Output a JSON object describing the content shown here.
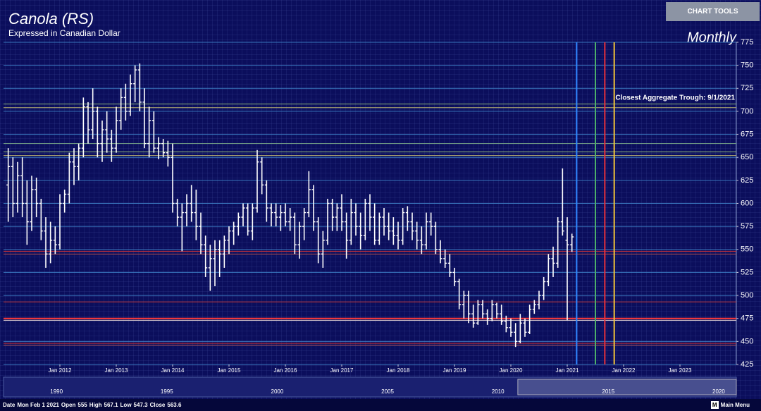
{
  "chart_data": {
    "type": "ohlc",
    "title": "Canola (RS)",
    "subtitle": "Expressed in Canadian Dollar",
    "period": "Monthly",
    "annotation": "Closest Aggregate Trough: 9/1/2021",
    "color": "#ffffff",
    "x": [
      "2011-02",
      "2011-03",
      "2011-04",
      "2011-05",
      "2011-06",
      "2011-07",
      "2011-08",
      "2011-09",
      "2011-10",
      "2011-11",
      "2011-12",
      "2012-01",
      "2012-02",
      "2012-03",
      "2012-04",
      "2012-05",
      "2012-06",
      "2012-07",
      "2012-08",
      "2012-09",
      "2012-10",
      "2012-11",
      "2012-12",
      "2013-01",
      "2013-02",
      "2013-03",
      "2013-04",
      "2013-05",
      "2013-06",
      "2013-07",
      "2013-08",
      "2013-09",
      "2013-10",
      "2013-11",
      "2013-12",
      "2014-01",
      "2014-02",
      "2014-03",
      "2014-04",
      "2014-05",
      "2014-06",
      "2014-07",
      "2014-08",
      "2014-09",
      "2014-10",
      "2014-11",
      "2014-12",
      "2015-01",
      "2015-02",
      "2015-03",
      "2015-04",
      "2015-05",
      "2015-06",
      "2015-07",
      "2015-08",
      "2015-09",
      "2015-10",
      "2015-11",
      "2015-12",
      "2016-01",
      "2016-02",
      "2016-03",
      "2016-04",
      "2016-05",
      "2016-06",
      "2016-07",
      "2016-08",
      "2016-09",
      "2016-10",
      "2016-11",
      "2016-12",
      "2017-01",
      "2017-02",
      "2017-03",
      "2017-04",
      "2017-05",
      "2017-06",
      "2017-07",
      "2017-08",
      "2017-09",
      "2017-10",
      "2017-11",
      "2017-12",
      "2018-01",
      "2018-02",
      "2018-03",
      "2018-04",
      "2018-05",
      "2018-06",
      "2018-07",
      "2018-08",
      "2018-09",
      "2018-10",
      "2018-11",
      "2018-12",
      "2019-01",
      "2019-02",
      "2019-03",
      "2019-04",
      "2019-05",
      "2019-06",
      "2019-07",
      "2019-08",
      "2019-09",
      "2019-10",
      "2019-11",
      "2019-12",
      "2020-01",
      "2020-02",
      "2020-03",
      "2020-04",
      "2020-05",
      "2020-06",
      "2020-07",
      "2020-08",
      "2020-09",
      "2020-10",
      "2020-11",
      "2020-12",
      "2021-01",
      "2021-02"
    ],
    "open": [
      620,
      640,
      600,
      630,
      600,
      580,
      615,
      600,
      570,
      545,
      560,
      555,
      600,
      610,
      645,
      640,
      660,
      705,
      680,
      700,
      665,
      680,
      670,
      660,
      690,
      715,
      700,
      730,
      745,
      710,
      665,
      690,
      660,
      665,
      655,
      650,
      600,
      585,
      590,
      600,
      590,
      575,
      555,
      530,
      540,
      550,
      545,
      560,
      570,
      575,
      585,
      595,
      570,
      595,
      645,
      620,
      595,
      590,
      585,
      590,
      580,
      585,
      555,
      575,
      590,
      615,
      580,
      545,
      560,
      600,
      585,
      595,
      580,
      560,
      590,
      575,
      565,
      600,
      585,
      560,
      585,
      575,
      570,
      565,
      560,
      590,
      580,
      570,
      560,
      555,
      580,
      575,
      550,
      540,
      535,
      525,
      515,
      490,
      500,
      480,
      470,
      490,
      480,
      475,
      490,
      480,
      472,
      465,
      460,
      450,
      470,
      460,
      485,
      490,
      500,
      515,
      540,
      535,
      580,
      560,
      555
    ],
    "high": [
      660,
      650,
      645,
      650,
      625,
      630,
      628,
      605,
      585,
      580,
      575,
      610,
      615,
      655,
      660,
      665,
      715,
      710,
      725,
      705,
      690,
      700,
      680,
      705,
      725,
      730,
      740,
      750,
      752,
      725,
      705,
      700,
      672,
      670,
      668,
      665,
      605,
      600,
      610,
      620,
      615,
      590,
      565,
      555,
      560,
      560,
      565,
      575,
      580,
      590,
      600,
      600,
      600,
      658,
      650,
      625,
      600,
      600,
      598,
      600,
      595,
      590,
      580,
      595,
      635,
      620,
      585,
      570,
      605,
      605,
      600,
      610,
      590,
      605,
      600,
      590,
      605,
      610,
      600,
      590,
      595,
      590,
      585,
      580,
      595,
      597,
      590,
      580,
      575,
      590,
      590,
      580,
      560,
      550,
      545,
      530,
      518,
      505,
      505,
      490,
      495,
      495,
      485,
      495,
      492,
      490,
      478,
      475,
      470,
      480,
      475,
      490,
      495,
      505,
      520,
      545,
      553,
      585,
      638,
      585,
      567.1
    ],
    "low": [
      580,
      585,
      590,
      585,
      555,
      570,
      585,
      560,
      530,
      535,
      545,
      550,
      590,
      600,
      620,
      625,
      650,
      665,
      670,
      650,
      645,
      655,
      645,
      655,
      680,
      690,
      695,
      710,
      700,
      660,
      650,
      655,
      648,
      650,
      640,
      590,
      575,
      548,
      575,
      580,
      560,
      545,
      520,
      505,
      510,
      520,
      530,
      545,
      555,
      565,
      575,
      565,
      560,
      590,
      610,
      580,
      575,
      575,
      570,
      575,
      570,
      545,
      540,
      560,
      585,
      570,
      535,
      530,
      555,
      570,
      570,
      570,
      540,
      555,
      565,
      550,
      560,
      570,
      555,
      555,
      565,
      560,
      555,
      550,
      555,
      570,
      560,
      550,
      545,
      550,
      565,
      545,
      535,
      530,
      520,
      510,
      485,
      475,
      470,
      465,
      468,
      475,
      468,
      472,
      475,
      468,
      460,
      455,
      444,
      448,
      455,
      458,
      480,
      485,
      495,
      510,
      520,
      530,
      565,
      473,
      547.3
    ],
    "close": [
      640,
      600,
      630,
      600,
      580,
      615,
      600,
      570,
      545,
      560,
      555,
      600,
      610,
      645,
      640,
      660,
      705,
      680,
      700,
      665,
      680,
      670,
      660,
      690,
      715,
      700,
      730,
      745,
      710,
      665,
      690,
      660,
      665,
      655,
      650,
      600,
      585,
      590,
      600,
      590,
      575,
      555,
      530,
      540,
      550,
      545,
      560,
      570,
      575,
      585,
      595,
      570,
      595,
      645,
      620,
      595,
      590,
      585,
      590,
      580,
      585,
      555,
      575,
      590,
      615,
      580,
      545,
      560,
      600,
      585,
      595,
      580,
      560,
      590,
      575,
      565,
      600,
      585,
      560,
      585,
      575,
      570,
      565,
      560,
      590,
      580,
      570,
      560,
      555,
      580,
      575,
      550,
      540,
      535,
      525,
      515,
      490,
      500,
      480,
      470,
      490,
      480,
      475,
      490,
      480,
      472,
      465,
      460,
      450,
      470,
      460,
      485,
      490,
      500,
      515,
      540,
      535,
      580,
      570,
      555,
      563.6
    ],
    "xlim": [
      "2011-01",
      "2024-01"
    ],
    "xticks": [
      {
        "value": "2012-01",
        "label": "Jan 2012"
      },
      {
        "value": "2013-01",
        "label": "Jan 2013"
      },
      {
        "value": "2014-01",
        "label": "Jan 2014"
      },
      {
        "value": "2015-01",
        "label": "Jan 2015"
      },
      {
        "value": "2016-01",
        "label": "Jan 2016"
      },
      {
        "value": "2017-01",
        "label": "Jan 2017"
      },
      {
        "value": "2018-01",
        "label": "Jan 2018"
      },
      {
        "value": "2019-01",
        "label": "Jan 2019"
      },
      {
        "value": "2020-01",
        "label": "Jan 2020"
      },
      {
        "value": "2021-01",
        "label": "Jan 2021"
      },
      {
        "value": "2022-01",
        "label": "Jan 2022"
      },
      {
        "value": "2023-01",
        "label": "Jan 2023"
      }
    ],
    "ylim": [
      425,
      775
    ],
    "yticks": [
      425,
      450,
      475,
      500,
      525,
      550,
      575,
      600,
      625,
      650,
      675,
      700,
      725,
      750,
      775
    ],
    "grid": true,
    "grid_color": "#3f82c8",
    "levels": [
      {
        "value": 708,
        "color": "#8fb878"
      },
      {
        "value": 704,
        "color": "#b8b070"
      },
      {
        "value": 665,
        "color": "#7aa888"
      },
      {
        "value": 656,
        "color": "#8fb878"
      },
      {
        "value": 652,
        "color": "#b8b070"
      },
      {
        "value": 548,
        "color": "#d83030"
      },
      {
        "value": 545,
        "color": "#b05050"
      },
      {
        "value": 493,
        "color": "#c03030"
      },
      {
        "value": 475,
        "color": "#ff3a3a",
        "width": 2
      },
      {
        "value": 473,
        "color": "#e0d0d0"
      },
      {
        "value": 448,
        "color": "#d83030"
      },
      {
        "value": 446,
        "color": "#b05050"
      }
    ],
    "vlines": [
      {
        "x": "2021-03",
        "color": "#2f86ff"
      },
      {
        "x": "2021-07",
        "color": "#4caf6a"
      },
      {
        "x": "2021-09",
        "color": "#e8313b"
      },
      {
        "x": "2021-11",
        "color": "#f2c53a"
      }
    ],
    "navigator": {
      "xlim": [
        1987.6,
        2020.8
      ],
      "xticks": [
        1990,
        1995,
        2000,
        2005,
        2010,
        2015,
        2020
      ],
      "window": [
        2010.9,
        2020.8
      ]
    }
  },
  "ui": {
    "chart_tools": "CHART TOOLS",
    "main_menu_icon": "M",
    "main_menu": "Main Menu",
    "footer": {
      "date_label": "Date",
      "date": "Mon Feb 1 2021",
      "open_label": "Open",
      "open": 555,
      "high_label": "High",
      "high": 567.1,
      "low_label": "Low",
      "low": 547.3,
      "close_label": "Close",
      "close": 563.6
    }
  }
}
